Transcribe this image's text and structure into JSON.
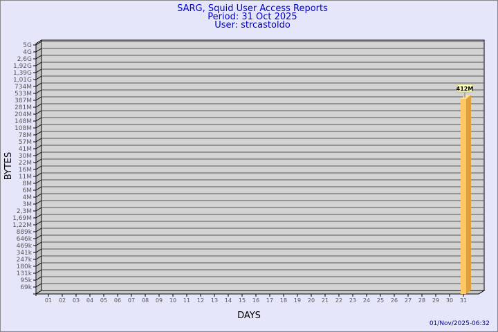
{
  "header": {
    "title": "SARG, Squid User Access Reports",
    "period": "Period: 31 Oct 2025",
    "user": "User: strcastoldo"
  },
  "footer": {
    "timestamp": "01/Nov/2025-06:32"
  },
  "colors": {
    "background": "#e6e6fa",
    "plot": "#d3d3d3",
    "bar_front": "#ffc864",
    "bar_side": "#e0a040",
    "title": "#0000cc"
  },
  "chart_data": {
    "type": "bar",
    "xlabel": "DAYS",
    "ylabel": "BYTES",
    "y_scale": "log",
    "y_tick_labels": [
      "5G",
      "4G",
      "2,6G",
      "1,92G",
      "1,39G",
      "1,01G",
      "734M",
      "533M",
      "387M",
      "281M",
      "204M",
      "148M",
      "108M",
      "78M",
      "57M",
      "41M",
      "30M",
      "22M",
      "16M",
      "11M",
      "8M",
      "6M",
      "4M",
      "3M",
      "2,3M",
      "1,69M",
      "1,22M",
      "889k",
      "646k",
      "469k",
      "341k",
      "247k",
      "180k",
      "131k",
      "95k",
      "69k"
    ],
    "categories": [
      "01",
      "02",
      "03",
      "04",
      "05",
      "06",
      "07",
      "08",
      "09",
      "10",
      "11",
      "12",
      "13",
      "14",
      "15",
      "16",
      "17",
      "18",
      "19",
      "20",
      "21",
      "22",
      "23",
      "24",
      "25",
      "26",
      "27",
      "28",
      "29",
      "30",
      "31"
    ],
    "values": [
      null,
      null,
      null,
      null,
      null,
      null,
      null,
      null,
      null,
      null,
      null,
      null,
      null,
      null,
      null,
      null,
      null,
      null,
      null,
      null,
      null,
      null,
      null,
      null,
      null,
      null,
      null,
      null,
      null,
      null,
      "412M"
    ],
    "data_labels": [
      "412M"
    ],
    "grid": true
  }
}
